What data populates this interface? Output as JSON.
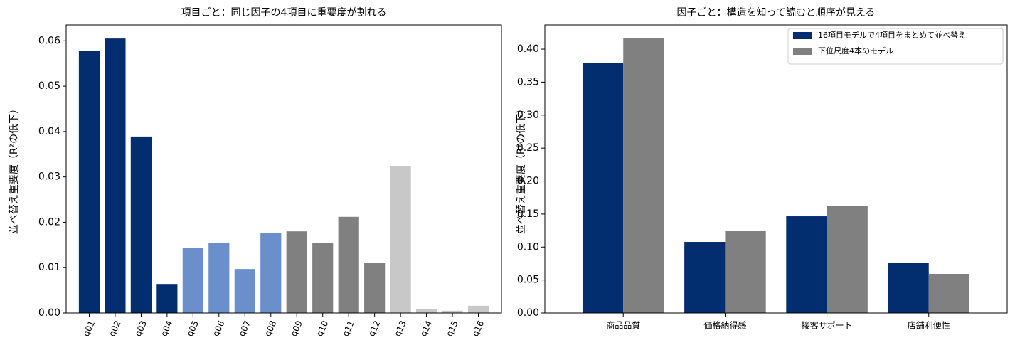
{
  "chart_data": [
    {
      "type": "bar",
      "title": "項目ごと：同じ因子の4項目に重要度が割れる",
      "ylabel": "並べ替え重要度（R²の低下）",
      "categories": [
        "q01",
        "q02",
        "q03",
        "q04",
        "q05",
        "q06",
        "q07",
        "q08",
        "q09",
        "q10",
        "q11",
        "q12",
        "q13",
        "q14",
        "q15",
        "q16"
      ],
      "values": [
        0.0577,
        0.0605,
        0.0389,
        0.0064,
        0.0143,
        0.0155,
        0.0097,
        0.0177,
        0.018,
        0.0155,
        0.0212,
        0.011,
        0.0323,
        0.0009,
        0.0005,
        0.0016
      ],
      "colors": [
        "#022d6e",
        "#022d6e",
        "#022d6e",
        "#022d6e",
        "#6b8fca",
        "#6b8fca",
        "#6b8fca",
        "#6b8fca",
        "#808080",
        "#808080",
        "#808080",
        "#808080",
        "#c8c8c8",
        "#c8c8c8",
        "#c8c8c8",
        "#c8c8c8"
      ],
      "ylim": [
        0,
        0.0635
      ],
      "yticks": [
        {
          "value": 0,
          "label": "0.00"
        },
        {
          "value": 0.01,
          "label": "0.01"
        },
        {
          "value": 0.02,
          "label": "0.02"
        },
        {
          "value": 0.03,
          "label": "0.03"
        },
        {
          "value": 0.04,
          "label": "0.04"
        },
        {
          "value": 0.05,
          "label": "0.05"
        },
        {
          "value": 0.06,
          "label": "0.06"
        }
      ]
    },
    {
      "type": "grouped_bar",
      "title": "因子ごと：構造を知って読むと順序が見える",
      "ylabel": "並べ替え重要度（R²の低下）",
      "categories": [
        "商品品質",
        "価格納得感",
        "接客サポート",
        "店舗利便性"
      ],
      "series": [
        {
          "name": "16項目モデルで4項目をまとめて並べ替え",
          "color": "#022d6e",
          "values": [
            0.3795,
            0.1078,
            0.1466,
            0.0755
          ]
        },
        {
          "name": "下位尺度4本のモデル",
          "color": "#808080",
          "values": [
            0.4162,
            0.124,
            0.1628,
            0.0593
          ]
        }
      ],
      "legend": "upper right",
      "ylim": [
        0,
        0.4367
      ],
      "yticks": [
        {
          "value": 0,
          "label": "0.00"
        },
        {
          "value": 0.05,
          "label": "0.05"
        },
        {
          "value": 0.1,
          "label": "0.10"
        },
        {
          "value": 0.15,
          "label": "0.15"
        },
        {
          "value": 0.2,
          "label": "0.20"
        },
        {
          "value": 0.25,
          "label": "0.25"
        },
        {
          "value": 0.3,
          "label": "0.30"
        },
        {
          "value": 0.35,
          "label": "0.35"
        },
        {
          "value": 0.4,
          "label": "0.40"
        }
      ]
    }
  ]
}
